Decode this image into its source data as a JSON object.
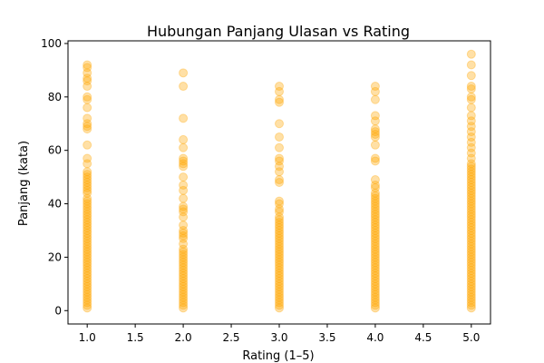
{
  "chart_data": {
    "type": "scatter",
    "title": "Hubungan Panjang Ulasan vs Rating",
    "xlabel": "Rating (1–5)",
    "ylabel": "Panjang (kata)",
    "xlim": [
      0.8,
      5.2
    ],
    "ylim": [
      -5,
      101
    ],
    "xticks": [
      1.0,
      1.5,
      2.0,
      2.5,
      3.0,
      3.5,
      4.0,
      4.5,
      5.0
    ],
    "xtick_labels": [
      "1.0",
      "1.5",
      "2.0",
      "2.5",
      "3.0",
      "3.5",
      "4.0",
      "4.5",
      "5.0"
    ],
    "yticks": [
      0,
      20,
      40,
      60,
      80,
      100
    ],
    "ytick_labels": [
      "0",
      "20",
      "40",
      "60",
      "80",
      "100"
    ],
    "grid": false,
    "color": "#FFA500",
    "marker_alpha": 0.35,
    "series": [
      {
        "x": 1,
        "y": [
          92,
          91,
          89,
          87,
          86,
          84,
          80,
          79,
          76,
          72,
          70,
          69,
          68,
          62,
          57,
          55,
          52,
          51,
          50,
          49,
          48,
          47,
          46,
          45,
          44,
          42,
          41,
          40,
          39,
          38,
          37,
          36,
          35,
          34,
          33,
          32,
          31,
          30,
          29,
          28,
          27,
          26,
          25,
          24,
          23,
          22,
          21,
          20,
          19,
          18,
          17,
          16,
          15,
          14,
          13,
          12,
          11,
          10,
          9,
          8,
          7,
          6,
          5,
          4,
          3,
          2,
          1
        ]
      },
      {
        "x": 2,
        "y": [
          89,
          84,
          72,
          64,
          61,
          57,
          56,
          55,
          54,
          50,
          47,
          45,
          42,
          39,
          38,
          37,
          35,
          32,
          30,
          29,
          28,
          27,
          25,
          23,
          22,
          21,
          20,
          19,
          18,
          17,
          16,
          15,
          14,
          13,
          12,
          11,
          10,
          9,
          8,
          7,
          6,
          5,
          4,
          3,
          2,
          1
        ]
      },
      {
        "x": 3,
        "y": [
          84,
          82,
          79,
          78,
          70,
          65,
          61,
          57,
          56,
          54,
          52,
          49,
          48,
          41,
          40,
          38,
          37,
          35,
          34,
          33,
          32,
          31,
          30,
          29,
          28,
          27,
          26,
          25,
          24,
          23,
          22,
          21,
          20,
          19,
          18,
          17,
          16,
          15,
          14,
          13,
          12,
          11,
          10,
          9,
          8,
          7,
          6,
          5,
          4,
          3,
          2,
          1
        ]
      },
      {
        "x": 4,
        "y": [
          84,
          82,
          79,
          73,
          71,
          68,
          67,
          66,
          65,
          62,
          57,
          56,
          49,
          47,
          46,
          44,
          43,
          42,
          41,
          40,
          39,
          38,
          37,
          36,
          35,
          34,
          33,
          32,
          31,
          30,
          29,
          28,
          27,
          26,
          25,
          24,
          23,
          22,
          21,
          20,
          19,
          18,
          17,
          16,
          15,
          14,
          13,
          12,
          11,
          10,
          9,
          8,
          7,
          6,
          5,
          4,
          3,
          2,
          1
        ]
      },
      {
        "x": 5,
        "y": [
          96,
          92,
          88,
          84,
          83,
          80,
          79,
          76,
          73,
          71,
          69,
          67,
          65,
          63,
          61,
          59,
          57,
          55,
          54,
          53,
          52,
          51,
          50,
          49,
          48,
          47,
          46,
          45,
          44,
          43,
          42,
          41,
          40,
          39,
          38,
          37,
          36,
          35,
          34,
          33,
          32,
          31,
          30,
          29,
          28,
          27,
          26,
          25,
          24,
          23,
          22,
          21,
          20,
          19,
          18,
          17,
          16,
          15,
          14,
          13,
          12,
          11,
          10,
          9,
          8,
          7,
          6,
          5,
          4,
          3,
          2,
          1
        ]
      }
    ]
  }
}
